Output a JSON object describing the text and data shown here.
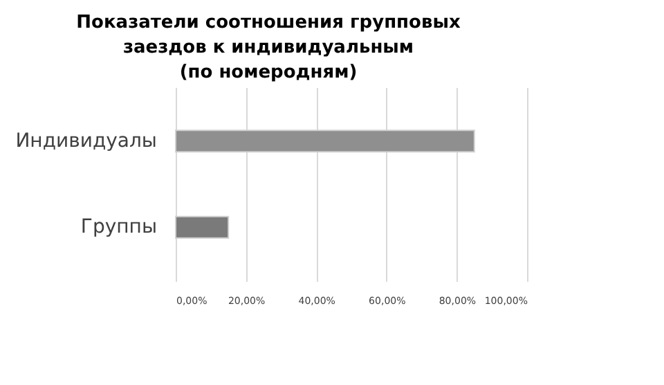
{
  "chart_data": {
    "type": "bar",
    "orientation": "horizontal",
    "title": "Показатели соотношения групповых заездов к индивидуальным (по номеродням)",
    "categories": [
      "Индивидуалы",
      "Группы"
    ],
    "values": [
      85,
      15
    ],
    "colors": [
      "#8f8f8f",
      "#7a7a7a"
    ],
    "xlim": [
      0,
      100
    ],
    "xticks": [
      {
        "value": 0,
        "label": "0,00%"
      },
      {
        "value": 20,
        "label": "20,00%"
      },
      {
        "value": 40,
        "label": "40,00%"
      },
      {
        "value": 60,
        "label": "60,00%"
      },
      {
        "value": 80,
        "label": "80,00%"
      },
      {
        "value": 100,
        "label": "100,00%"
      }
    ],
    "grid": "x"
  }
}
